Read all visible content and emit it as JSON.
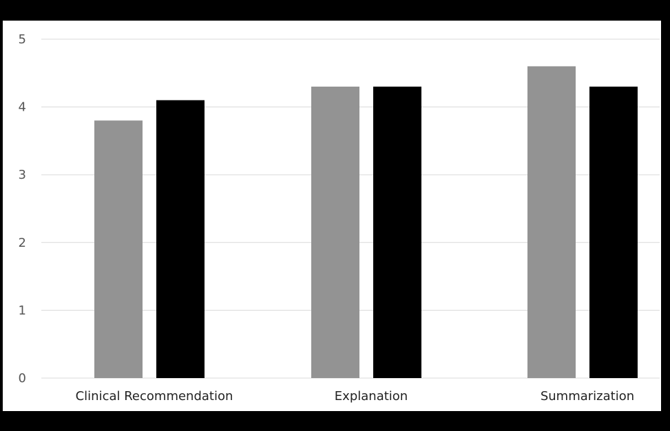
{
  "chart_data": {
    "type": "bar",
    "categories": [
      "Clinical Recommendation",
      "Explanation",
      "Summarization"
    ],
    "series": [
      {
        "color": "#939393",
        "values": [
          3.8,
          4.3,
          4.6
        ]
      },
      {
        "color": "#000000",
        "values": [
          4.1,
          4.3,
          4.3
        ]
      }
    ],
    "yticks": [
      "0",
      "1",
      "2",
      "3",
      "4",
      "5"
    ],
    "ylim": [
      0,
      5
    ],
    "grid": true,
    "gridColor": "#d9d9d9",
    "frameColor": "#000000",
    "plotBackground": "#ffffff"
  }
}
